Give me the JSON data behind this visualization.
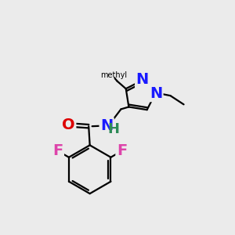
{
  "bg_color": "#ebebeb",
  "bond_color": "#000000",
  "bond_width": 1.6,
  "atom_colors": {
    "N": "#1a1aff",
    "NH": "#2e8b57",
    "O": "#dd0000",
    "F": "#dd44aa",
    "C": "#000000"
  },
  "font_size": 14
}
